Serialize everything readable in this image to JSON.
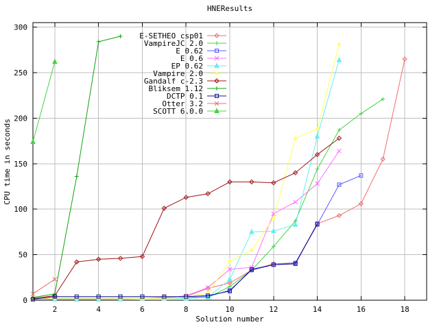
{
  "window": {
    "title": "HNEResults"
  },
  "chart_data": {
    "type": "line",
    "title": "HNEResults",
    "xlabel": "Solution number",
    "ylabel": "CPU time in seconds",
    "xlim": [
      1,
      19
    ],
    "ylim": [
      0,
      305
    ],
    "xticks": [
      2,
      4,
      6,
      8,
      10,
      12,
      14,
      16,
      18
    ],
    "yticks": [
      0,
      50,
      100,
      150,
      200,
      250,
      300
    ],
    "grid": true,
    "legend_position": "top-inside",
    "colors": {
      "background": "#ffffff",
      "grid": "#bdbdbd",
      "border": "#000000"
    },
    "series": [
      {
        "name": "E-SETHEO csp01",
        "color": "#f26c6c",
        "marker": "diamond",
        "points": [
          [
            1,
            2
          ],
          [
            2,
            2
          ],
          [
            3,
            2
          ],
          [
            4,
            2
          ],
          [
            5,
            2
          ],
          [
            6,
            2
          ],
          [
            7,
            3
          ],
          [
            8,
            4
          ],
          [
            9,
            13
          ],
          [
            10,
            19
          ],
          [
            11,
            33
          ],
          [
            12,
            40
          ],
          [
            13,
            41
          ],
          [
            14,
            84
          ],
          [
            15,
            93
          ],
          [
            16,
            106
          ],
          [
            17,
            155
          ],
          [
            18,
            265
          ]
        ]
      },
      {
        "name": "VampireJC 2.0",
        "color": "#42d442",
        "marker": "plus",
        "points": [
          [
            1,
            1
          ],
          [
            2,
            1
          ],
          [
            3,
            1
          ],
          [
            4,
            1
          ],
          [
            5,
            2
          ],
          [
            6,
            2
          ],
          [
            7,
            2
          ],
          [
            8,
            2
          ],
          [
            9,
            3
          ],
          [
            10,
            15
          ],
          [
            11,
            33
          ],
          [
            12,
            59
          ],
          [
            13,
            87
          ],
          [
            14,
            144
          ],
          [
            15,
            187
          ],
          [
            16,
            205
          ],
          [
            17,
            221
          ]
        ]
      },
      {
        "name": "E 0.62",
        "color": "#5858ff",
        "marker": "square",
        "points": [
          [
            1,
            1
          ],
          [
            2,
            2
          ],
          [
            3,
            2
          ],
          [
            4,
            2
          ],
          [
            5,
            2
          ],
          [
            6,
            2
          ],
          [
            7,
            2
          ],
          [
            8,
            3
          ],
          [
            9,
            4
          ],
          [
            10,
            11
          ],
          [
            11,
            33
          ],
          [
            12,
            39
          ],
          [
            13,
            41
          ],
          [
            14,
            83
          ],
          [
            15,
            127
          ],
          [
            16,
            137
          ]
        ]
      },
      {
        "name": "E 0.6",
        "color": "#ff6cff",
        "marker": "x",
        "points": [
          [
            1,
            1
          ],
          [
            2,
            1
          ],
          [
            3,
            1
          ],
          [
            4,
            1
          ],
          [
            5,
            2
          ],
          [
            6,
            2
          ],
          [
            7,
            2
          ],
          [
            8,
            5
          ],
          [
            9,
            14
          ],
          [
            10,
            34
          ],
          [
            11,
            36
          ],
          [
            12,
            95
          ],
          [
            13,
            108
          ],
          [
            14,
            128
          ],
          [
            15,
            164
          ]
        ]
      },
      {
        "name": "EP 0.62",
        "color": "#66eeee",
        "marker": "triangle",
        "points": [
          [
            1,
            1
          ],
          [
            2,
            1
          ],
          [
            3,
            1
          ],
          [
            4,
            1
          ],
          [
            5,
            1
          ],
          [
            6,
            2
          ],
          [
            7,
            2
          ],
          [
            8,
            2
          ],
          [
            9,
            3
          ],
          [
            10,
            23
          ],
          [
            11,
            75
          ],
          [
            12,
            76
          ],
          [
            13,
            83
          ],
          [
            14,
            180
          ],
          [
            15,
            264
          ]
        ]
      },
      {
        "name": "Vampire 2.0",
        "color": "#ffff5e",
        "marker": "star",
        "points": [
          [
            1,
            1
          ],
          [
            2,
            2
          ],
          [
            3,
            2
          ],
          [
            4,
            2
          ],
          [
            5,
            2
          ],
          [
            6,
            2
          ],
          [
            7,
            2
          ],
          [
            8,
            3
          ],
          [
            9,
            8
          ],
          [
            10,
            43
          ],
          [
            11,
            55
          ],
          [
            12,
            90
          ],
          [
            13,
            178
          ],
          [
            14,
            188
          ],
          [
            15,
            281
          ]
        ]
      },
      {
        "name": "Gandalf c-2.3",
        "color": "#9e1414",
        "marker": "diamond",
        "points": [
          [
            1,
            2
          ],
          [
            2,
            5
          ],
          [
            3,
            42
          ],
          [
            4,
            45
          ],
          [
            5,
            46
          ],
          [
            6,
            48
          ],
          [
            7,
            101
          ],
          [
            8,
            113
          ],
          [
            9,
            117
          ],
          [
            10,
            130
          ],
          [
            11,
            130
          ],
          [
            12,
            129
          ],
          [
            13,
            140
          ],
          [
            14,
            160
          ],
          [
            15,
            178
          ]
        ]
      },
      {
        "name": "Bliksem 1.12",
        "color": "#0da10d",
        "marker": "plus",
        "points": [
          [
            1,
            3
          ],
          [
            2,
            7
          ],
          [
            3,
            136
          ],
          [
            4,
            284
          ],
          [
            5,
            290
          ]
        ]
      },
      {
        "name": "DCTP 0.1",
        "color": "#101090",
        "marker": "square",
        "points": [
          [
            1,
            1
          ],
          [
            2,
            4
          ],
          [
            3,
            4
          ],
          [
            4,
            4
          ],
          [
            5,
            4
          ],
          [
            6,
            4
          ],
          [
            7,
            4
          ],
          [
            8,
            4
          ],
          [
            9,
            5
          ],
          [
            10,
            10
          ],
          [
            11,
            34
          ],
          [
            12,
            39
          ],
          [
            13,
            40
          ],
          [
            14,
            84
          ]
        ]
      },
      {
        "name": "Otter 3.2",
        "color": "#f26c6c",
        "marker": "x",
        "points": [
          [
            1,
            7
          ],
          [
            2,
            23
          ]
        ]
      },
      {
        "name": "SCOTT 6.0.0",
        "color": "#42d442",
        "marker": "triangle",
        "points": [
          [
            1,
            174
          ],
          [
            2,
            262
          ]
        ]
      }
    ]
  }
}
